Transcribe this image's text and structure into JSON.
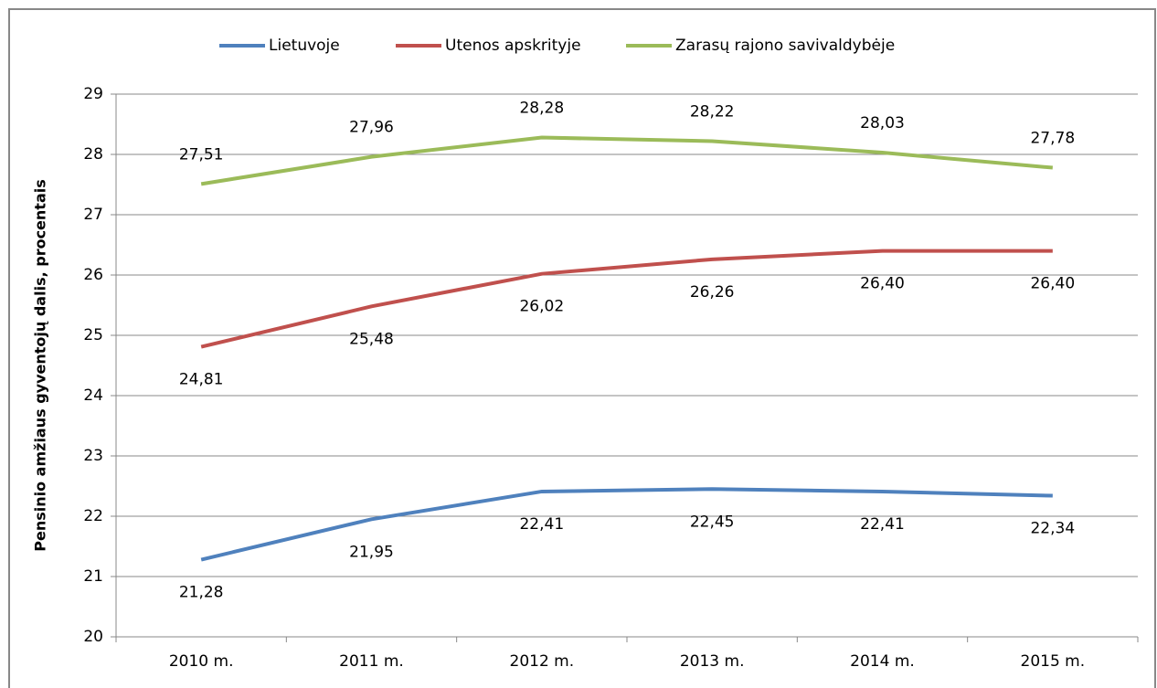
{
  "chart_data": {
    "type": "line",
    "y_label": "Pensinio amžiaus gyventojų dalis, procentais",
    "categories": [
      "2010 m.",
      "2011 m.",
      "2012 m.",
      "2013 m.",
      "2014 m.",
      "2015 m."
    ],
    "series": [
      {
        "name": "Lietuvoje",
        "color": "#4f81bd",
        "values": [
          21.28,
          21.95,
          22.41,
          22.45,
          22.41,
          22.34
        ],
        "value_labels": [
          "21,28",
          "21,95",
          "22,41",
          "22,45",
          "22,41",
          "22,34"
        ]
      },
      {
        "name": "Utenos apskrityje",
        "color": "#c0504d",
        "values": [
          24.81,
          25.48,
          26.02,
          26.26,
          26.4,
          26.4
        ],
        "value_labels": [
          "24,81",
          "25,48",
          "26,02",
          "26,26",
          "26,40",
          "26,40"
        ]
      },
      {
        "name": "Zarasų rajono savivaldybėje",
        "color": "#9bbb59",
        "values": [
          27.51,
          27.96,
          28.28,
          28.22,
          28.03,
          27.78
        ],
        "value_labels": [
          "27,51",
          "27,96",
          "28,28",
          "28,22",
          "28,03",
          "27,78"
        ]
      }
    ],
    "ylim": [
      20,
      29
    ],
    "yticks": [
      20,
      21,
      22,
      23,
      24,
      25,
      26,
      27,
      28,
      29
    ],
    "grid": true,
    "legend": "top"
  }
}
